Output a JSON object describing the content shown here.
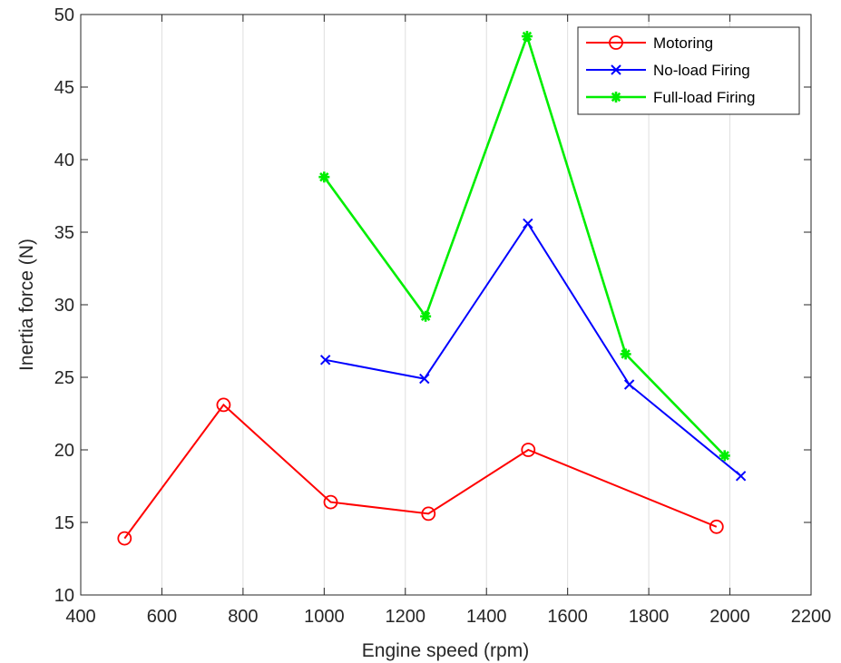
{
  "chart_data": {
    "type": "line",
    "xlabel": "Engine speed (rpm)",
    "ylabel": "Inertia force (N)",
    "xlim": [
      400,
      2200
    ],
    "ylim": [
      10,
      50
    ],
    "xticks": [
      400,
      600,
      800,
      1000,
      1200,
      1400,
      1600,
      1800,
      2000,
      2200
    ],
    "yticks": [
      10,
      15,
      20,
      25,
      30,
      35,
      40,
      45,
      50
    ],
    "xtick_labels": [
      "400",
      "600",
      "800",
      "1000",
      "1200",
      "1400",
      "1600",
      "1800",
      "2000",
      "2200"
    ],
    "ytick_labels": [
      "10",
      "15",
      "20",
      "25",
      "30",
      "35",
      "40",
      "45",
      "50"
    ],
    "grid": "vertical",
    "legend_position": "top-right",
    "series": [
      {
        "name": "Motoring",
        "color": "#ff0000",
        "marker": "circle",
        "x": [
          508,
          752,
          1016,
          1257,
          1503,
          1967
        ],
        "y": [
          13.9,
          23.1,
          16.4,
          15.6,
          20.0,
          14.7
        ]
      },
      {
        "name": "No-load Firing",
        "color": "#0000ff",
        "marker": "x",
        "x": [
          1003,
          1247,
          1502,
          1752,
          2027
        ],
        "y": [
          26.2,
          24.9,
          35.6,
          24.5,
          18.2
        ]
      },
      {
        "name": "Full-load Firing",
        "color": "#00ee00",
        "marker": "asterisk",
        "x": [
          1000,
          1250,
          1500,
          1743,
          1987
        ],
        "y": [
          38.8,
          29.2,
          48.5,
          26.6,
          19.6
        ]
      }
    ]
  }
}
